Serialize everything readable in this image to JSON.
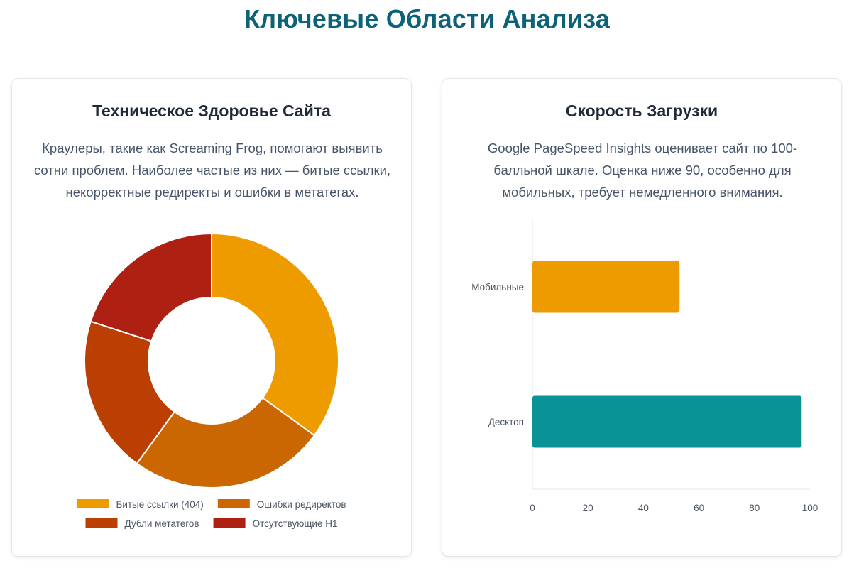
{
  "page": {
    "title": "Ключевые Области Анализа"
  },
  "cards": {
    "technical": {
      "title": "Техническое Здоровье Сайта",
      "description": "Краулеры, такие как Screaming Frog, помогают выявить сотни проблем. Наиболее частые из них — битые ссылки, некорректные редиректы и ошибки в метатегах."
    },
    "speed": {
      "title": "Скорость Загрузки",
      "description": "Google PageSpeed Insights оценивает сайт по 100-балльной шкале. Оценка ниже 90, особенно для мобильных, требует немедленного внимания."
    }
  },
  "chart_data": [
    {
      "type": "pie",
      "variant": "doughnut",
      "categories": [
        "Битые ссылки (404)",
        "Ошибки редиректов",
        "Дубли метатегов",
        "Отсутствующие H1"
      ],
      "values": [
        35,
        25,
        20,
        20
      ],
      "colors": [
        "#ee9b00",
        "#ca6702",
        "#bb3e03",
        "#ae2012"
      ],
      "legend_position": "bottom"
    },
    {
      "type": "bar",
      "orientation": "horizontal",
      "categories": [
        "Мобильные",
        "Десктоп"
      ],
      "values": [
        53,
        97
      ],
      "colors": [
        "#ee9b00",
        "#0a9396"
      ],
      "xlim": [
        0,
        100
      ],
      "xticks": [
        0,
        20,
        40,
        60,
        80,
        100
      ],
      "grid": false,
      "legend": false
    }
  ]
}
